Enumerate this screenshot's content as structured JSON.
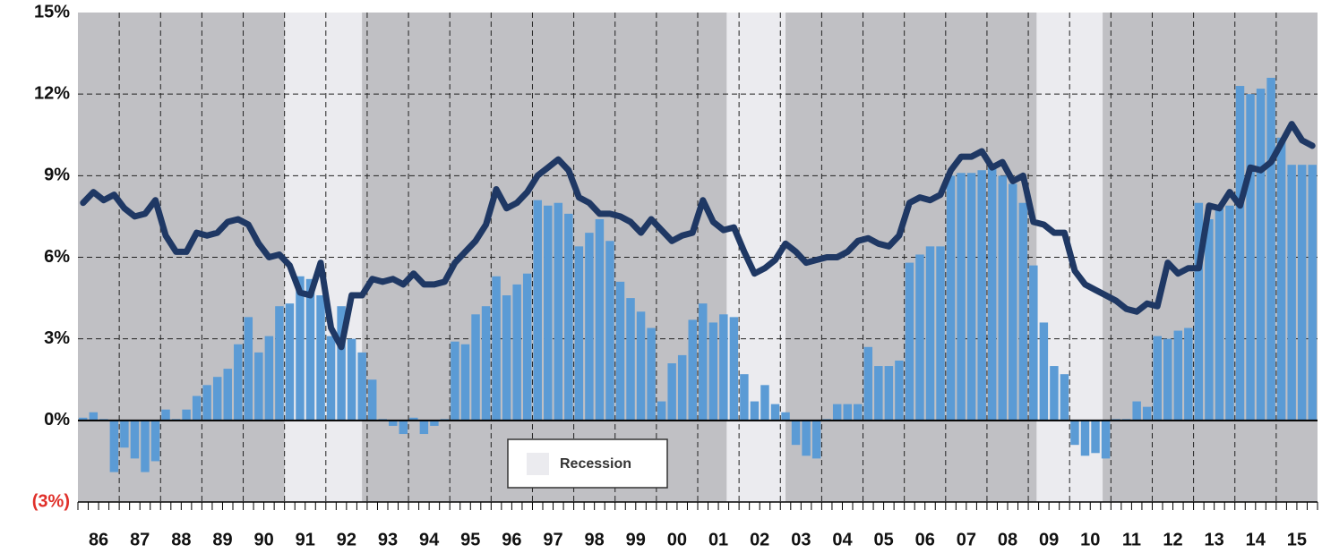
{
  "chart_data": {
    "type": "bar",
    "categories": [
      "86",
      "87",
      "88",
      "89",
      "90",
      "91",
      "92",
      "93",
      "94",
      "95",
      "96",
      "97",
      "98",
      "99",
      "00",
      "01",
      "02",
      "03",
      "04",
      "05",
      "06",
      "07",
      "08",
      "09",
      "10",
      "11",
      "12",
      "13",
      "14",
      "15"
    ],
    "series": [
      {
        "type": "bar",
        "color": "#5b9bd5",
        "values": [
          [
            0.1,
            0.3,
            0.05,
            -1.9
          ],
          [
            -1.0,
            -1.4,
            -1.9,
            -1.5
          ],
          [
            0.4,
            0.05,
            0.4,
            0.9
          ],
          [
            1.3,
            1.6,
            1.9,
            2.8
          ],
          [
            3.8,
            2.5,
            3.1,
            4.2
          ],
          [
            4.3,
            5.3,
            5.2,
            4.6
          ],
          [
            3.1,
            4.2,
            3.0,
            2.5
          ],
          [
            1.5,
            0.05,
            -0.2,
            -0.5
          ],
          [
            0.1,
            -0.5,
            -0.2,
            0.05
          ],
          [
            2.9,
            2.8,
            3.9,
            4.2
          ],
          [
            5.3,
            4.6,
            5.0,
            5.4
          ],
          [
            8.1,
            7.9,
            8.0,
            7.6
          ],
          [
            6.4,
            6.9,
            7.4,
            6.6
          ],
          [
            5.1,
            4.5,
            4.0,
            3.4
          ],
          [
            0.7,
            2.1,
            2.4,
            3.7
          ],
          [
            4.3,
            3.6,
            3.9,
            3.8
          ],
          [
            1.7,
            0.7,
            1.3,
            0.6
          ],
          [
            0.3,
            -0.9,
            -1.3,
            -1.4
          ],
          [
            0.05,
            0.6,
            0.6,
            0.6
          ],
          [
            2.7,
            2.0,
            2.0,
            2.2
          ],
          [
            5.8,
            6.1,
            6.4,
            6.4
          ],
          [
            9.0,
            9.1,
            9.1,
            9.2
          ],
          [
            9.4,
            9.0,
            8.7,
            8.0
          ],
          [
            5.7,
            3.6,
            2.0,
            1.7
          ],
          [
            -0.9,
            -1.3,
            -1.2,
            -1.4
          ],
          [
            0.05,
            0.05,
            0.7,
            0.5
          ],
          [
            3.1,
            3.0,
            3.3,
            3.4
          ],
          [
            8.0,
            7.4,
            7.8,
            7.9
          ],
          [
            12.3,
            12.0,
            12.2,
            12.6
          ],
          [
            10.4,
            9.4,
            9.4,
            9.4
          ]
        ]
      },
      {
        "type": "line",
        "color": "#1f3864",
        "values": [
          [
            8.0,
            8.4,
            8.1,
            8.3
          ],
          [
            7.8,
            7.5,
            7.6,
            8.1
          ],
          [
            6.8,
            6.2,
            6.2,
            6.9
          ],
          [
            6.8,
            6.9,
            7.3,
            7.4
          ],
          [
            7.2,
            6.5,
            6.0,
            6.1
          ],
          [
            5.7,
            4.7,
            4.6,
            5.8
          ],
          [
            3.4,
            2.7,
            4.6,
            4.6
          ],
          [
            5.2,
            5.1,
            5.2,
            5.0
          ],
          [
            5.4,
            5.0,
            5.0,
            5.1
          ],
          [
            5.8,
            6.2,
            6.6,
            7.2
          ],
          [
            8.5,
            7.8,
            8.0,
            8.4
          ],
          [
            9.0,
            9.3,
            9.6,
            9.2
          ],
          [
            8.2,
            8.0,
            7.6,
            7.6
          ],
          [
            7.5,
            7.3,
            6.9,
            7.4
          ],
          [
            7.0,
            6.6,
            6.8,
            6.9
          ],
          [
            8.1,
            7.3,
            7.0,
            7.1
          ],
          [
            6.2,
            5.4,
            5.6,
            5.9
          ],
          [
            6.5,
            6.2,
            5.8,
            5.9
          ],
          [
            6.0,
            6.0,
            6.2,
            6.6
          ],
          [
            6.7,
            6.5,
            6.4,
            6.8
          ],
          [
            8.0,
            8.2,
            8.1,
            8.3
          ],
          [
            9.2,
            9.7,
            9.7,
            9.9
          ],
          [
            9.3,
            9.5,
            8.8,
            9.0
          ],
          [
            7.3,
            7.2,
            6.9,
            6.9
          ],
          [
            5.5,
            5.0,
            4.8,
            4.6
          ],
          [
            4.4,
            4.1,
            4.0,
            4.3
          ],
          [
            4.2,
            5.8,
            5.4,
            5.6
          ],
          [
            5.6,
            7.9,
            7.8,
            8.4
          ],
          [
            7.9,
            9.3,
            9.2,
            9.5
          ],
          [
            10.2,
            10.9,
            10.3,
            10.1
          ]
        ]
      }
    ],
    "ylim": [
      -3,
      15
    ],
    "yticks": [
      {
        "value": -3,
        "label": "(3%)"
      },
      {
        "value": 0,
        "label": "0%"
      },
      {
        "value": 3,
        "label": "3%"
      },
      {
        "value": 6,
        "label": "6%"
      },
      {
        "value": 9,
        "label": "9%"
      },
      {
        "value": 12,
        "label": "12%"
      },
      {
        "value": 15,
        "label": "15%"
      }
    ],
    "negative_label_color": "#e0302a",
    "grid": true,
    "background_color": "#c0c0c4",
    "recessions": {
      "label": "Recession",
      "color": "#ebebef",
      "spans": [
        [
          5,
          6.875
        ],
        [
          15.7,
          17.125
        ],
        [
          23.2,
          24.8
        ]
      ]
    }
  }
}
